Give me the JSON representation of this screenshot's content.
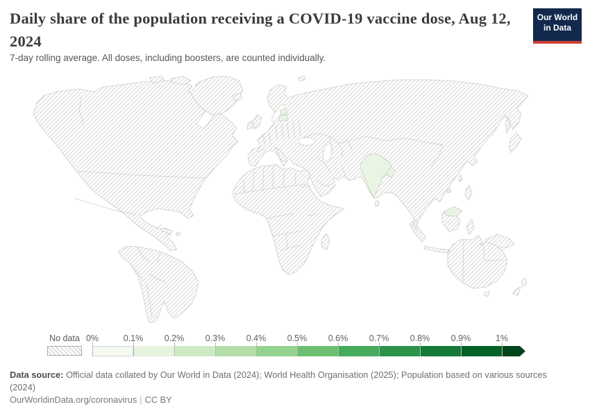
{
  "header": {
    "title": "Daily share of the population receiving a COVID-19 vaccine dose, Aug 12, 2024",
    "subtitle": "7-day rolling average. All doses, including boosters, are counted individually.",
    "logo": {
      "line1": "Our World",
      "line2": "in Data"
    }
  },
  "chart_data": {
    "type": "choropleth-world-map",
    "title": "Daily share of the population receiving a COVID-19 vaccine dose",
    "date": "Aug 12, 2024",
    "metric": "Daily COVID-19 vaccine doses administered per 100 people, 7-day rolling average",
    "legend": {
      "no_data_label": "No data",
      "tick_labels": [
        "0%",
        "0.1%",
        "0.2%",
        "0.3%",
        "0.4%",
        "0.5%",
        "0.6%",
        "0.7%",
        "0.8%",
        "0.9%",
        "1%"
      ],
      "segment_colors": [
        "#f4faf1",
        "#e5f3df",
        "#cdeac5",
        "#b4dfab",
        "#93d28f",
        "#6cbf70",
        "#46ab5d",
        "#2c934a",
        "#147a38",
        "#046128"
      ],
      "arrow_color": "#00441b",
      "open_ended_above": "1%"
    },
    "regions_with_data": [
      {
        "name": "India",
        "value_band_estimate": "0–0.1%"
      },
      {
        "name": "Bangladesh",
        "value_band_estimate": "0–0.1%"
      },
      {
        "name": "Malaysia",
        "value_band_estimate": "0–0.1%"
      },
      {
        "name": "Estonia",
        "value_band_estimate": "0–0.1%"
      },
      {
        "name": "Latvia",
        "value_band_estimate": "0–0.1%"
      }
    ],
    "regions_without_data": "All other countries shown with gray hatching",
    "map_colors": {
      "data_fill": "#e9f4e3",
      "no_data_hatch_line": "#dcdcdc",
      "border": "#c9cec5"
    }
  },
  "footer": {
    "datasource_label": "Data source:",
    "datasource_text": " Official data collated by Our World in Data (2024); World Health Organisation (2025); Population based on various sources (2024)",
    "link_text": "OurWorldinData.org/coronavirus",
    "separator": "|",
    "license": "CC BY"
  },
  "colors": {
    "logo_bg": "#12294d",
    "logo_accent": "#cf3f36"
  }
}
